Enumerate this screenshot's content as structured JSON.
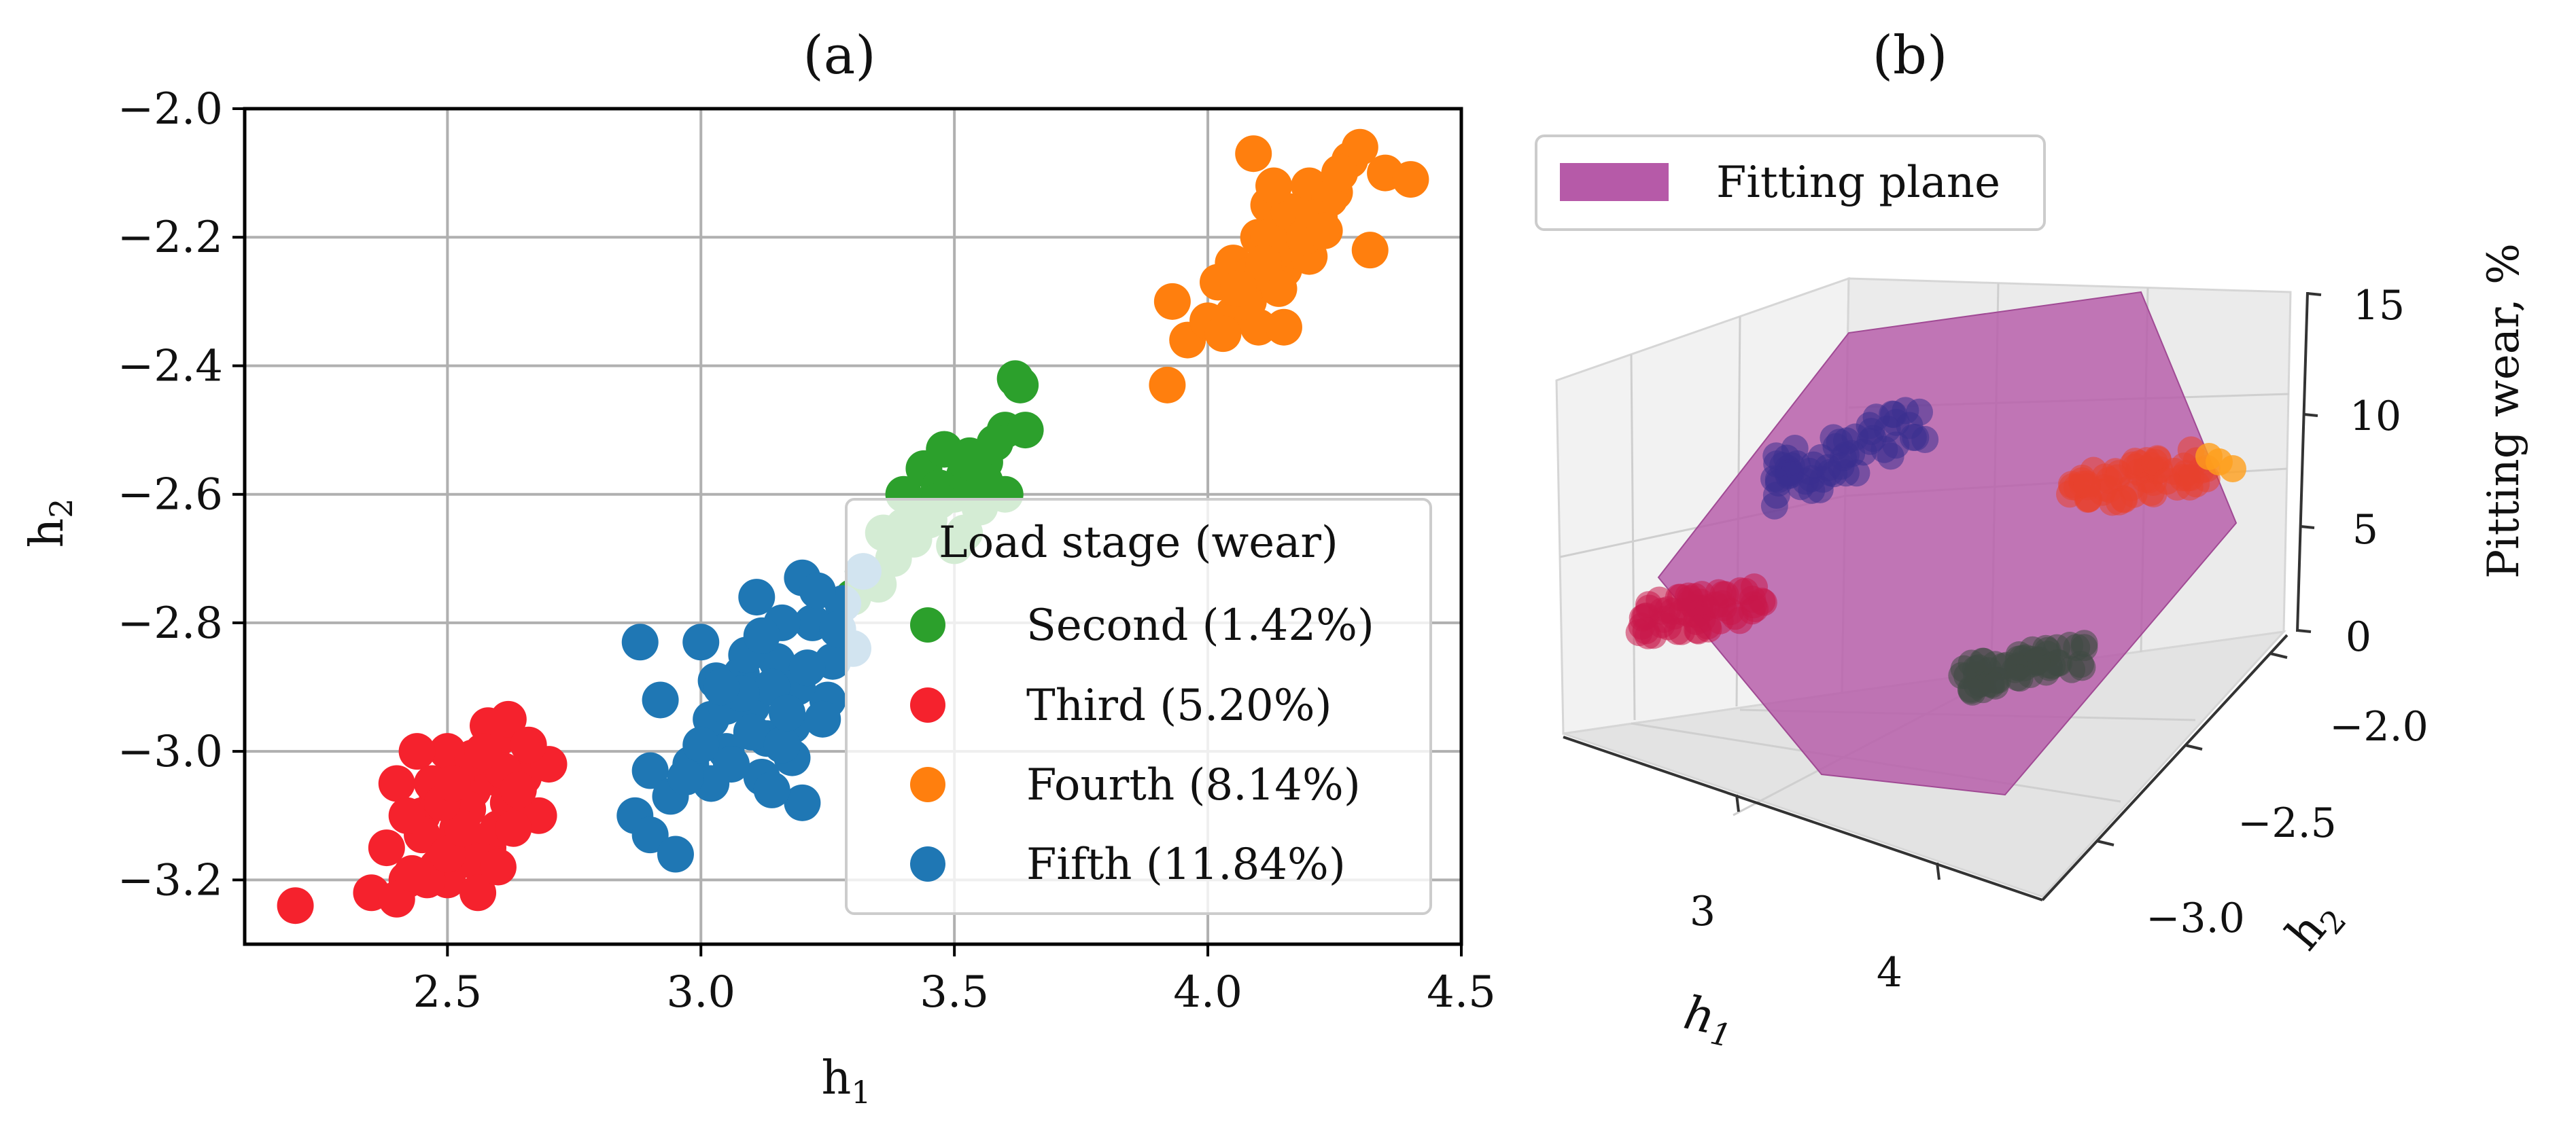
{
  "chart_data": [
    {
      "panel": "a",
      "type": "scatter",
      "title": "(a)",
      "xlabel": "h",
      "xlabel_sub": "1",
      "ylabel": "h",
      "ylabel_sub": "2",
      "xlim": [
        2.1,
        4.5
      ],
      "ylim": [
        -3.3,
        -2.0
      ],
      "xticks": [
        2.5,
        3.0,
        3.5,
        4.0,
        4.5
      ],
      "xtick_labels": [
        "2.5",
        "3.0",
        "3.5",
        "4.0",
        "4.5"
      ],
      "yticks": [
        -3.2,
        -3.0,
        -2.8,
        -2.6,
        -2.4,
        -2.2,
        -2.0
      ],
      "ytick_labels": [
        "−3.2",
        "−3.0",
        "−2.8",
        "−2.6",
        "−2.4",
        "−2.2",
        "−2.0"
      ],
      "grid": true,
      "legend": {
        "title": "Load stage (wear)",
        "position": "lower-right",
        "entries": [
          {
            "label": "Second (1.42%)",
            "color": "#2ca02c"
          },
          {
            "label": "Third (5.20%)",
            "color": "#f5222d"
          },
          {
            "label": "Fourth (8.14%)",
            "color": "#ff7f0e"
          },
          {
            "label": "Fifth (11.84%)",
            "color": "#1f77b4"
          }
        ]
      },
      "series": [
        {
          "name": "Second (1.42%)",
          "color": "#2ca02c",
          "x": [
            3.32,
            3.36,
            3.4,
            3.44,
            3.48,
            3.52,
            3.56,
            3.6,
            3.63,
            3.62,
            3.45,
            3.5,
            3.55,
            3.38,
            3.42,
            3.47,
            3.53,
            3.58,
            3.3,
            3.35,
            3.5,
            3.44,
            3.6,
            3.56,
            3.4,
            3.64,
            3.52,
            3.47
          ],
          "y": [
            -2.72,
            -2.66,
            -2.6,
            -2.56,
            -2.53,
            -2.57,
            -2.55,
            -2.5,
            -2.43,
            -2.42,
            -2.64,
            -2.6,
            -2.62,
            -2.7,
            -2.67,
            -2.59,
            -2.54,
            -2.52,
            -2.76,
            -2.74,
            -2.68,
            -2.63,
            -2.6,
            -2.58,
            -2.65,
            -2.5,
            -2.66,
            -2.61
          ]
        },
        {
          "name": "Third (5.20%)",
          "color": "#f5222d",
          "x": [
            2.2,
            2.35,
            2.38,
            2.4,
            2.42,
            2.45,
            2.48,
            2.5,
            2.52,
            2.55,
            2.58,
            2.6,
            2.62,
            2.65,
            2.68,
            2.7,
            2.4,
            2.45,
            2.5,
            2.55,
            2.6,
            2.62,
            2.44,
            2.48,
            2.52,
            2.57,
            2.63,
            2.66,
            2.46,
            2.54,
            2.59,
            2.42,
            2.5,
            2.56,
            2.61,
            2.47,
            2.53,
            2.58,
            2.64,
            2.43,
            2.49,
            2.55,
            2.6,
            2.51,
            2.57
          ],
          "y": [
            -3.24,
            -3.22,
            -3.15,
            -3.05,
            -3.2,
            -3.1,
            -3.18,
            -3.0,
            -3.12,
            -3.06,
            -3.15,
            -2.98,
            -3.08,
            -3.04,
            -3.1,
            -3.02,
            -3.23,
            -3.13,
            -3.2,
            -3.17,
            -3.12,
            -2.95,
            -3.0,
            -3.07,
            -3.14,
            -3.02,
            -3.12,
            -2.99,
            -3.2,
            -3.09,
            -3.04,
            -3.1,
            -3.16,
            -3.22,
            -3.03,
            -3.05,
            -3.12,
            -2.96,
            -3.06,
            -3.19,
            -3.08,
            -3.01,
            -3.18,
            -3.05,
            -3.0
          ]
        },
        {
          "name": "Fourth (8.14%)",
          "color": "#ff7f0e",
          "x": [
            3.92,
            3.93,
            3.96,
            4.0,
            4.02,
            4.05,
            4.08,
            4.1,
            4.12,
            4.15,
            4.18,
            4.2,
            4.22,
            4.25,
            4.28,
            4.3,
            4.35,
            4.4,
            4.1,
            4.14,
            4.17,
            4.05,
            4.08,
            4.12,
            4.2,
            4.24,
            4.03,
            4.07,
            4.16,
            4.11,
            4.19,
            4.26,
            4.13,
            4.09,
            4.21,
            4.06,
            4.15,
            4.23,
            4.32
          ],
          "y": [
            -2.43,
            -2.3,
            -2.36,
            -2.33,
            -2.27,
            -2.24,
            -2.3,
            -2.2,
            -2.15,
            -2.25,
            -2.18,
            -2.12,
            -2.17,
            -2.13,
            -2.08,
            -2.06,
            -2.1,
            -2.11,
            -2.34,
            -2.28,
            -2.22,
            -2.32,
            -2.26,
            -2.2,
            -2.23,
            -2.14,
            -2.35,
            -2.3,
            -2.16,
            -2.24,
            -2.2,
            -2.1,
            -2.12,
            -2.07,
            -2.17,
            -2.28,
            -2.34,
            -2.19,
            -2.22
          ]
        },
        {
          "name": "Fifth (11.84%)",
          "color": "#1f77b4",
          "x": [
            2.87,
            2.88,
            2.9,
            2.92,
            2.95,
            2.98,
            3.0,
            3.02,
            3.05,
            3.08,
            3.1,
            3.12,
            3.15,
            3.18,
            3.2,
            3.22,
            3.25,
            3.28,
            3.3,
            3.32,
            2.9,
            2.94,
            3.0,
            3.03,
            3.06,
            3.09,
            3.13,
            3.16,
            3.19,
            3.23,
            3.26,
            3.05,
            3.1,
            3.14,
            3.18,
            3.21,
            3.24,
            3.02,
            3.08,
            3.12,
            3.16,
            3.2,
            2.97,
            3.11,
            3.17,
            3.27,
            3.04,
            3.14
          ],
          "y": [
            -3.1,
            -2.83,
            -3.13,
            -2.92,
            -3.16,
            -3.02,
            -2.83,
            -2.95,
            -3.0,
            -2.88,
            -2.93,
            -3.04,
            -2.86,
            -2.96,
            -2.73,
            -2.8,
            -2.92,
            -2.77,
            -2.84,
            -2.72,
            -3.03,
            -3.07,
            -2.99,
            -2.89,
            -3.02,
            -2.85,
            -2.98,
            -2.8,
            -2.9,
            -2.75,
            -2.86,
            -2.93,
            -2.97,
            -2.9,
            -3.01,
            -2.87,
            -2.95,
            -3.05,
            -2.91,
            -2.82,
            -2.99,
            -3.08,
            -3.04,
            -2.76,
            -2.94,
            -2.81,
            -2.9,
            -3.06
          ]
        }
      ]
    },
    {
      "panel": "b",
      "type": "scatter3d",
      "title": "(b)",
      "xlabel": "h",
      "xlabel_sub": "1",
      "ylabel": "h",
      "ylabel_sub": "2",
      "zlabel": "Pitting wear, %",
      "x_tick_labels": [
        "3",
        "4"
      ],
      "y_tick_labels": [
        "−2.0",
        "−2.5",
        "−3.0"
      ],
      "z_tick_labels": [
        "0",
        "5",
        "10",
        "15"
      ],
      "legend": {
        "entries": [
          {
            "label": "Fitting plane",
            "color": "#b65aa8"
          }
        ]
      },
      "series": [
        {
          "name": "Second stage cluster",
          "color": "#3f4a44"
        },
        {
          "name": "Third stage cluster",
          "color": "#c8174a"
        },
        {
          "name": "Fourth stage cluster",
          "color": "#e8412e"
        },
        {
          "name": "Fifth stage cluster",
          "color": "#3a2f8f"
        }
      ]
    }
  ]
}
